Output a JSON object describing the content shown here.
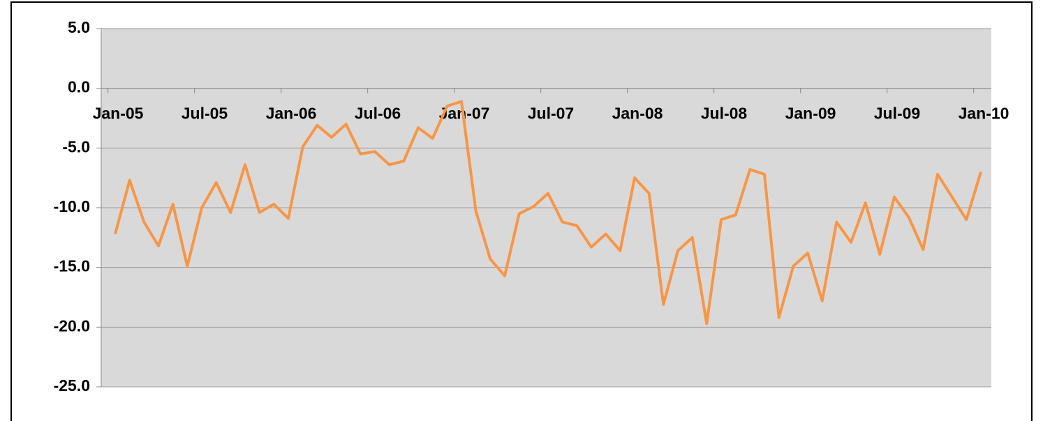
{
  "chart_data": {
    "type": "line",
    "categories": [
      "Jan-05",
      null,
      null,
      null,
      null,
      null,
      "Jul-05",
      null,
      null,
      null,
      null,
      null,
      "Jan-06",
      null,
      null,
      null,
      null,
      null,
      "Jul-06",
      null,
      null,
      null,
      null,
      null,
      "Jan-07",
      null,
      null,
      null,
      null,
      null,
      "Jul-07",
      null,
      null,
      null,
      null,
      null,
      "Jan-08",
      null,
      null,
      null,
      null,
      null,
      "Jul-08",
      null,
      null,
      null,
      null,
      null,
      "Jan-09",
      null,
      null,
      null,
      null,
      null,
      "Jul-09",
      null,
      null,
      null,
      null,
      null,
      "Jan-10"
    ],
    "series": [
      {
        "color": "#f79646",
        "values": [
          -12.2,
          -7.7,
          -11.2,
          -13.2,
          -9.7,
          -14.9,
          -10.0,
          -7.9,
          -10.4,
          -6.4,
          -10.4,
          -9.7,
          -10.9,
          -4.9,
          -3.1,
          -4.1,
          -3.0,
          -5.5,
          -5.3,
          -6.4,
          -6.1,
          -3.3,
          -4.2,
          -1.5,
          -1.1,
          -10.3,
          -14.3,
          -15.7,
          -10.5,
          -9.9,
          -8.8,
          -11.2,
          -11.5,
          -13.3,
          -12.2,
          -13.6,
          -7.5,
          -8.8,
          -18.1,
          -13.6,
          -12.5,
          -19.7,
          -11.0,
          -10.6,
          -6.8,
          -7.2,
          -19.2,
          -14.9,
          -13.8,
          -17.8,
          -11.2,
          -12.9,
          -9.6,
          -13.9,
          -9.1,
          -10.8,
          -13.5,
          -7.2,
          -9.1,
          -11.0,
          -7.0
        ]
      }
    ],
    "ylim": [
      -25,
      5
    ],
    "yticks": [
      {
        "value": -25,
        "label": "-25.0"
      },
      {
        "value": -20,
        "label": "-20.0"
      },
      {
        "value": -15,
        "label": "-15.0"
      },
      {
        "value": -10,
        "label": "-10.0"
      },
      {
        "value": -5,
        "label": "-5.0"
      },
      {
        "value": 0,
        "label": "0.0"
      },
      {
        "value": 5,
        "label": "5.0"
      }
    ],
    "grid": true
  }
}
